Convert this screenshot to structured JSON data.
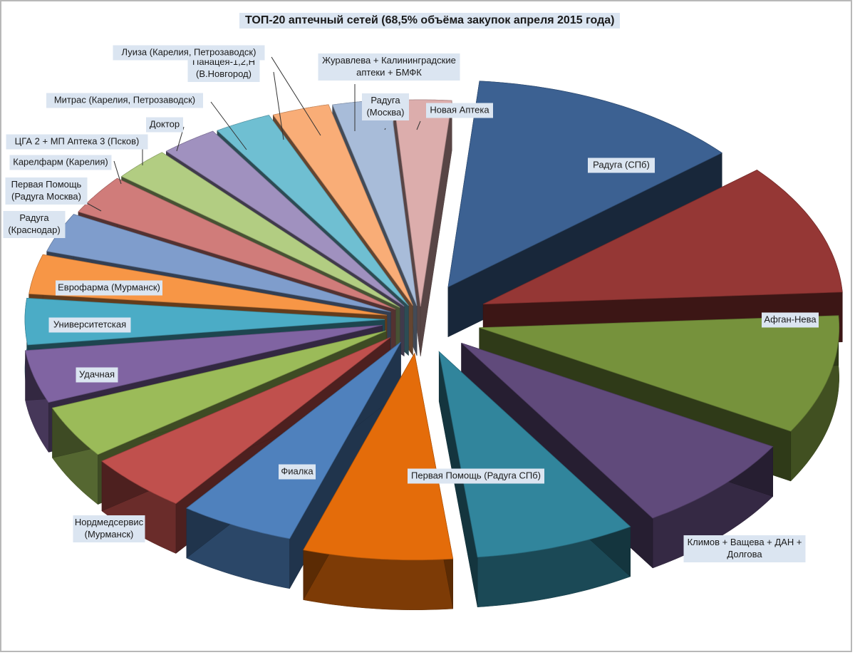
{
  "chart_data": {
    "type": "pie",
    "title": "ТОП-20 аптечный сетей (68,5% объёма закупок апреля 2015 года)",
    "legend": "none",
    "slices": [
      {
        "label": "Радуга (СПб)",
        "value": 12.0,
        "color": "#3c6192"
      },
      {
        "label": "Афган-Нева",
        "value": 10.0,
        "color": "#953735"
      },
      {
        "label": "Климов + Ващева + ДАН + Долгова",
        "value": 9.0,
        "color": "#76923c"
      },
      {
        "label": "Первая Помощь (Радуга СПб)",
        "value": 7.5,
        "color": "#604a7b"
      },
      {
        "label": "Фиалка",
        "value": 7.0,
        "color": "#31859c"
      },
      {
        "label": "Нордмедсервис (Мурманск)",
        "value": 6.5,
        "color": "#e46c0a"
      },
      {
        "label": "Удачная",
        "value": 5.0,
        "color": "#4f81bd"
      },
      {
        "label": "Университетская",
        "value": 4.5,
        "color": "#c0504d"
      },
      {
        "label": "Еврофарма (Мурманск)",
        "value": 4.0,
        "color": "#9bbb59"
      },
      {
        "label": "Радуга (Краснодар)",
        "value": 4.0,
        "color": "#8064a2"
      },
      {
        "label": "Первая Помощь (Радуга Москва)",
        "value": 3.5,
        "color": "#4bacc6"
      },
      {
        "label": "Карелфарм (Карелия)",
        "value": 3.0,
        "color": "#f79646"
      },
      {
        "label": "ЦГА 2 + МП Аптека 3 (Псков)",
        "value": 3.0,
        "color": "#7f9dcc"
      },
      {
        "label": "Доктор",
        "value": 3.0,
        "color": "#d07c7a"
      },
      {
        "label": "Митрас (Карелия, Петрозаводск)",
        "value": 2.5,
        "color": "#b2cd82"
      },
      {
        "label": "Панацея-1,2,Н (В.Новгород)",
        "value": 2.5,
        "color": "#a091bf"
      },
      {
        "label": "Луиза (Карелия, Петрозаводск)",
        "value": 2.5,
        "color": "#6fbfd2"
      },
      {
        "label": "Журавлева + Калининградские аптеки + БМФК",
        "value": 2.5,
        "color": "#f9ad77"
      },
      {
        "label": "Радуга (Москва)",
        "value": 2.5,
        "color": "#a8bcd9"
      },
      {
        "label": "Новая Аптека",
        "value": 2.5,
        "color": "#dcadac"
      }
    ]
  }
}
